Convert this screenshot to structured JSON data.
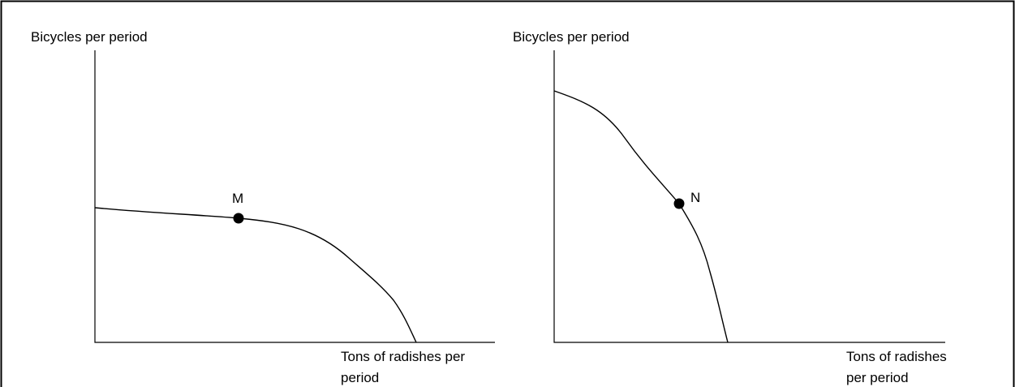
{
  "panels": [
    {
      "y_axis_label": "Bicycles per period",
      "x_axis_label": [
        "Tons of radishes per",
        "period"
      ],
      "point_label": "M"
    },
    {
      "y_axis_label": "Bicycles per period",
      "x_axis_label": [
        "Tons of radishes",
        "per period"
      ],
      "point_label": "N"
    }
  ]
}
